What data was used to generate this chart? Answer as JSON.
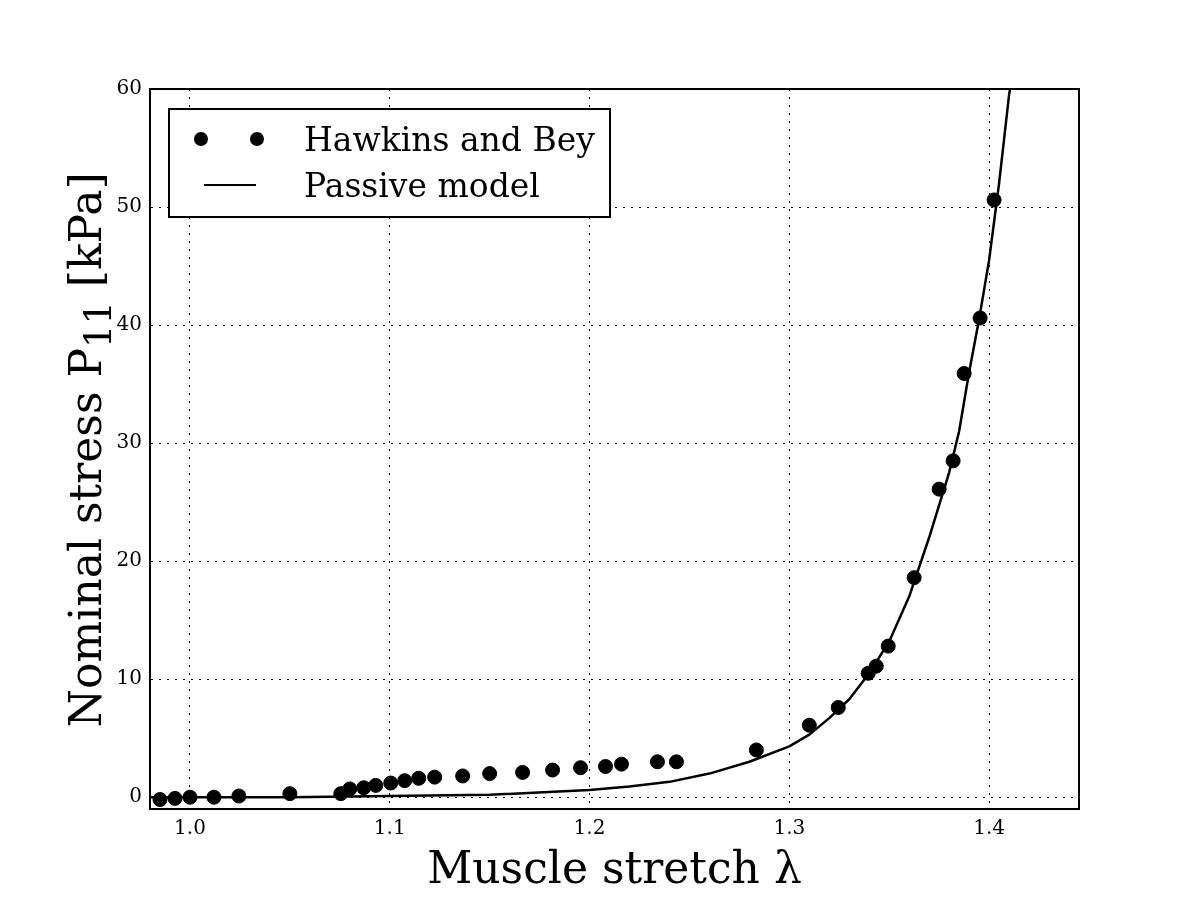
{
  "chart_data": {
    "type": "scatter",
    "xlabel": "Muscle stretch λ",
    "ylabel": "Nominal stress P$_{11}$ [kPa]",
    "xlim": [
      0.98,
      1.445
    ],
    "ylim": [
      -1,
      60
    ],
    "xticks": [
      {
        "value": 1,
        "label": "1.0"
      },
      1.1,
      1.2,
      1.3,
      1.4
    ],
    "yticks": [
      0,
      10,
      20,
      30,
      40,
      50,
      60
    ],
    "grid": true,
    "legend": "top left",
    "marker": "circle",
    "series": [
      {
        "name": "Hawkins and Bey",
        "type": "scatter",
        "color": "#000000",
        "x": [
          0.985,
          0.9925,
          1.0,
          1.012,
          1.0245,
          1.05,
          1.0755,
          1.08,
          1.087,
          1.093,
          1.1005,
          1.1075,
          1.1145,
          1.1225,
          1.1365,
          1.15,
          1.1665,
          1.1815,
          1.1955,
          1.208,
          1.216,
          1.234,
          1.2435,
          1.2835,
          1.31,
          1.3245,
          1.3395,
          1.3435,
          1.3495,
          1.3625,
          1.375,
          1.382,
          1.3875,
          1.3955,
          1.4025
        ],
        "values": [
          -0.2,
          -0.1,
          0,
          0,
          0.1,
          0.3,
          0.3,
          0.7,
          0.8,
          1.0,
          1.2,
          1.4,
          1.6,
          1.7,
          1.8,
          2.0,
          2.1,
          2.3,
          2.5,
          2.6,
          2.8,
          3.0,
          3.0,
          4.0,
          6.1,
          7.6,
          10.5,
          11.1,
          12.8,
          18.6,
          26.1,
          28.5,
          35.9,
          40.6,
          50.6
        ]
      },
      {
        "name": "Passive model",
        "type": "line",
        "color": "#000000",
        "line_style": "solid",
        "marker": "none",
        "x": [
          0.98,
          1.0,
          1.05,
          1.1,
          1.15,
          1.2,
          1.22,
          1.24,
          1.26,
          1.28,
          1.3,
          1.31,
          1.32,
          1.33,
          1.34,
          1.35,
          1.36,
          1.37,
          1.38,
          1.385,
          1.39,
          1.395,
          1.4,
          1.405,
          1.41,
          1.4105
        ],
        "values": [
          0,
          0,
          0,
          0.1,
          0.2,
          0.6,
          0.9,
          1.3,
          2.0,
          3.0,
          4.3,
          5.3,
          6.7,
          8.3,
          10.5,
          13.2,
          17,
          22,
          27.5,
          31,
          36,
          40.5,
          45.5,
          52,
          59.5,
          60
        ]
      }
    ]
  }
}
